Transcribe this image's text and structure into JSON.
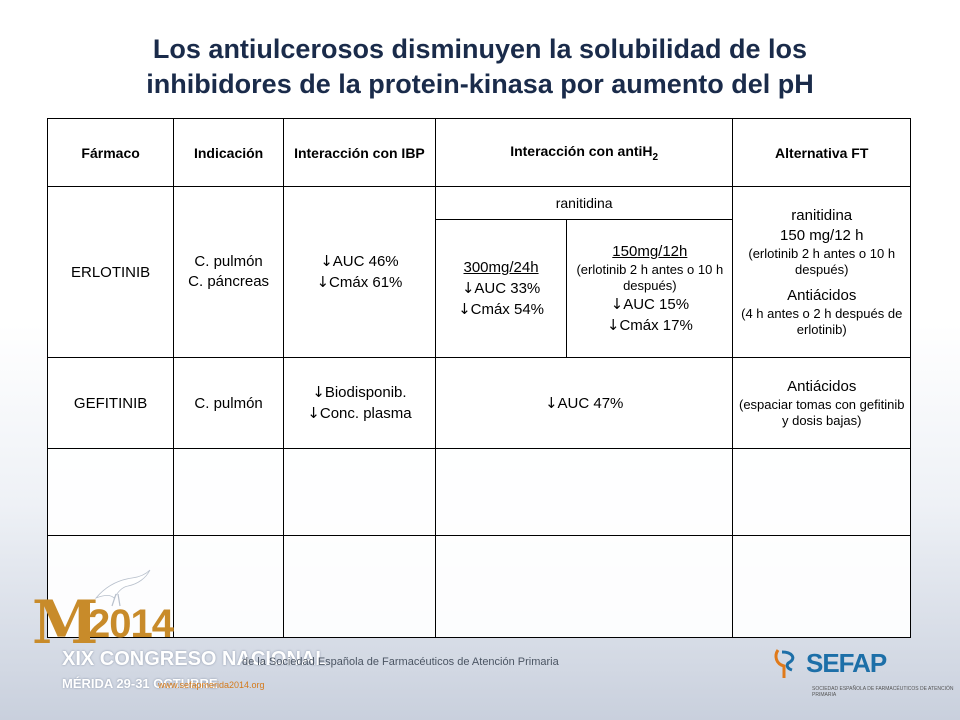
{
  "slide": {
    "title_line1": "Los antiulcerosos disminuyen la solubilidad de los",
    "title_line2": "inhibidores de la protein-kinasa por aumento del pH"
  },
  "table": {
    "headers": {
      "farmaco": "Fármaco",
      "indicacion": "Indicación",
      "ibp": "Interacción con IBP",
      "antih2": "Interacción con antiH",
      "antih2_sub": "2",
      "alternativa": "Alternativa FT"
    },
    "arrow_symbol": "↓",
    "erlotinib": {
      "name": "ERLOTINIB",
      "ind1": "C. pulmón",
      "ind2": "C. páncreas",
      "ibp1": "AUC 46%",
      "ibp2": "Cmáx 61%",
      "antih2_drug": "ranitidina",
      "dose1_title": "300mg/24h",
      "dose1_l1": "AUC 33%",
      "dose1_l2": "Cmáx 54%",
      "dose2_title": "150mg/12h",
      "dose2_note": "(erlotinib 2 h antes o 10 h después)",
      "dose2_l1": "AUC 15%",
      "dose2_l2": "Cmáx 17%",
      "alt1": "ranitidina",
      "alt2": "150 mg/12 h",
      "alt3": "(erlotinib 2 h antes o 10 h después)",
      "alt4": "Antiácidos",
      "alt5": "(4 h antes o 2 h después de erlotinib)"
    },
    "gefitinib": {
      "name": "GEFITINIB",
      "ind": "C. pulmón",
      "ibp1": "Biodisponib.",
      "ibp2": "Conc. plasma",
      "antih2": "AUC 47%",
      "alt1": "Antiácidos",
      "alt2": "(espaciar tomas con gefitinib y dosis bajas)"
    }
  },
  "footer": {
    "logo_m": "M",
    "logo_year": "2014",
    "congreso": "XIX CONGRESO NACIONAL",
    "congreso_rest": "de la Sociedad Española de Farmacéuticos de Atención Primaria",
    "merida": "MÉRIDA 29-31 OCTUBRE",
    "web": "www.sefapmerida2014.org",
    "sefap": "SEFAP",
    "sefap_sub": "SOCIEDAD ESPAÑOLA DE FARMACÉUTICOS DE ATENCIÓN PRIMARIA"
  },
  "colors": {
    "title": "#1a2b4a",
    "red": "#e01b1b",
    "green": "#1c7a1c",
    "gray": "#7a7a7a",
    "logo_gold": "#c88b2a",
    "sefap_blue": "#1d6fa8"
  }
}
